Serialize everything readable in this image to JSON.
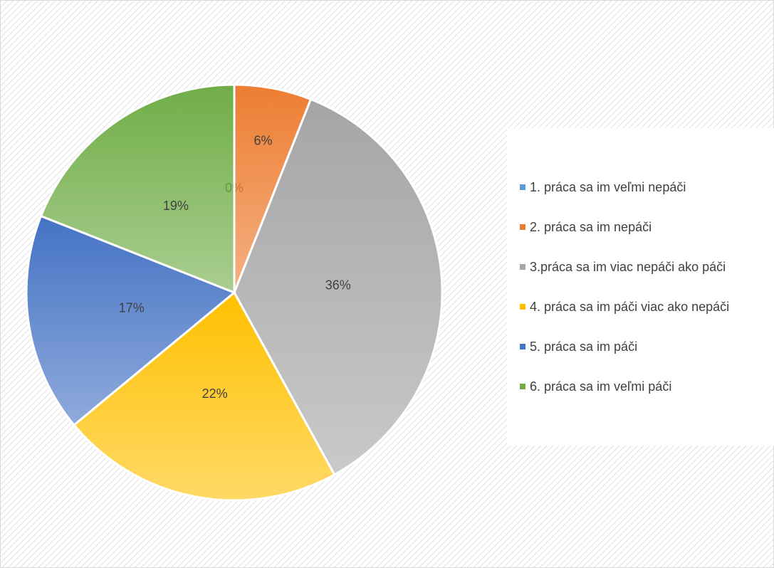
{
  "chart_data": {
    "type": "pie",
    "categories": [
      "1. práca sa im veľmi nepáči",
      "2. práca sa im nepáči",
      "3.práca sa im viac nepáči ako páči",
      "4. práca sa im páči viac ako nepáči",
      "5. práca sa im páči",
      "6. práca sa im veľmi páči"
    ],
    "values": [
      0,
      6,
      36,
      22,
      17,
      19
    ],
    "value_labels": [
      "0%",
      "6%",
      "36%",
      "22%",
      "17%",
      "19%"
    ],
    "colors": [
      "#5b9bd5",
      "#ed7d31",
      "#a5a5a5",
      "#ffc000",
      "#4472c4",
      "#70ad47"
    ],
    "legend": "right"
  }
}
